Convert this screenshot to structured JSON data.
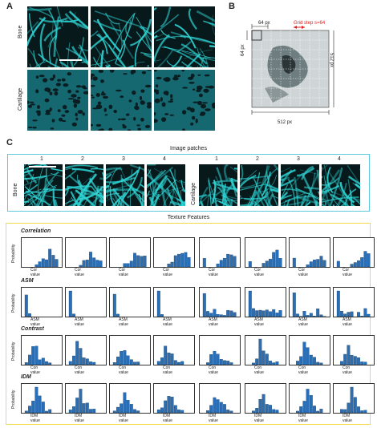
{
  "panelA": {
    "letter": "A",
    "rows": [
      "Bone",
      "Cartilage"
    ]
  },
  "panelB": {
    "letter": "B",
    "tile_size_label": "64 px",
    "tile_size_label_side": "64 px",
    "grid_step_label": "Grid step s=64",
    "width_label": "512 px",
    "height_label": "512 px"
  },
  "panelC": {
    "letter": "C",
    "patches_title": "Image patches",
    "groups": [
      {
        "label": "Bone",
        "numbers": [
          "1",
          "2",
          "3",
          "4"
        ]
      },
      {
        "label": "Cartilage",
        "numbers": [
          "1",
          "2",
          "3",
          "4"
        ]
      }
    ],
    "texture_title": "Texture Features",
    "ylabel": "Probability",
    "features": [
      {
        "name": "Correlation",
        "xlabel": "Cor value"
      },
      {
        "name": "ASM",
        "xlabel": "ASM value"
      },
      {
        "name": "Contrast",
        "xlabel": "Con value"
      },
      {
        "name": "IDM",
        "xlabel": "IDM value"
      }
    ]
  },
  "colors": {
    "cyan": "#2fd5d5",
    "bar_blue": "#2a6fb5",
    "frame_cyan": "#5ec8dc",
    "frame_yellow": "#f2d94a",
    "grid_red": "#e02020"
  }
}
